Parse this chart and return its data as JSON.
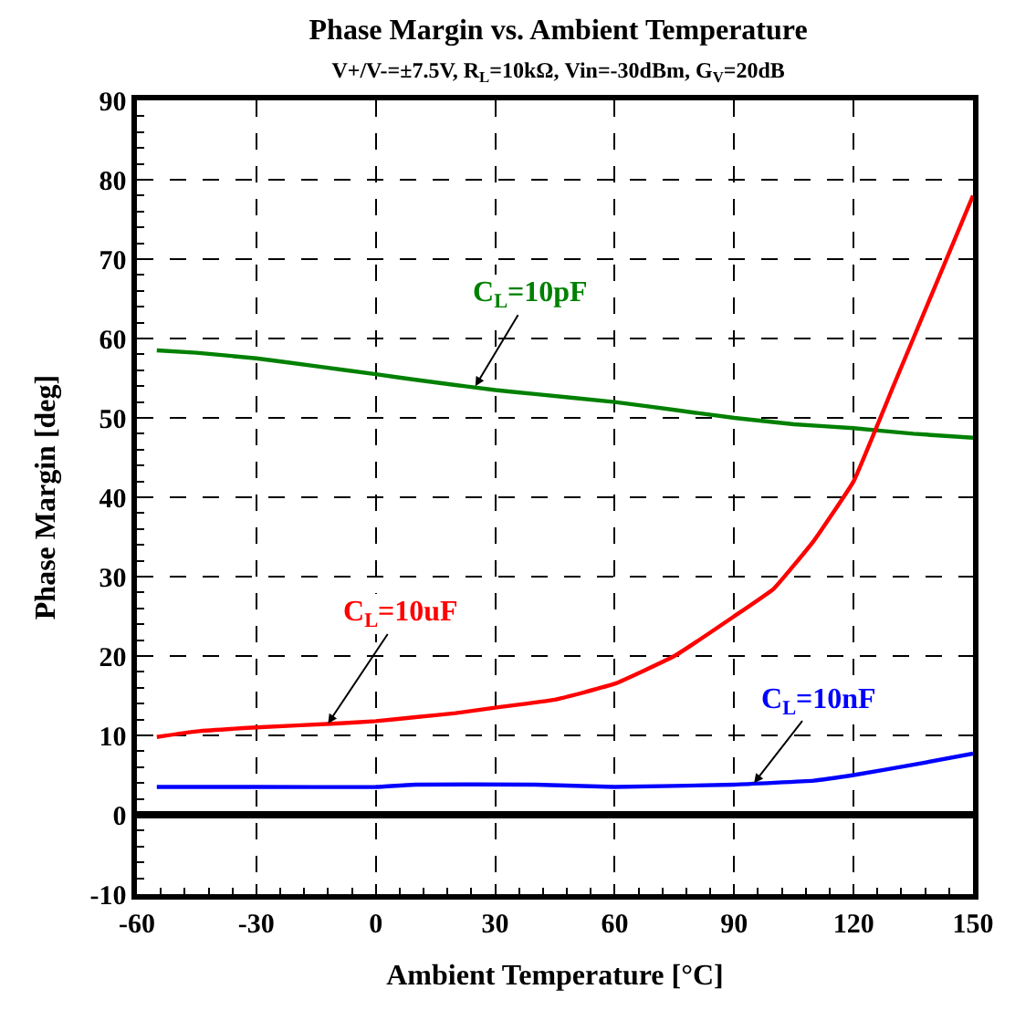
{
  "chart_data": {
    "type": "line",
    "title": "Phase Margin vs. Ambient Temperature",
    "subtitle": "V+/V-=±7.5V, R$_{L}$=10kΩ, Vin=-30dBm, G$_{V}$=20dB",
    "xlabel": "Ambient Temperature [°C]",
    "ylabel": "Phase Margin [deg]",
    "xlim": [
      -60,
      150
    ],
    "xticks": [
      -60,
      -30,
      0,
      30,
      60,
      90,
      120,
      150
    ],
    "ylim": [
      -10,
      90
    ],
    "yticks": [
      -10,
      0,
      10,
      20,
      30,
      40,
      50,
      60,
      70,
      80,
      90
    ],
    "grid": true,
    "line_style": "solid",
    "series": [
      {
        "color": "#008000",
        "x": [
          -55,
          -45,
          -30,
          -15,
          0,
          10,
          30,
          40,
          60,
          75,
          90,
          105,
          120,
          135,
          150
        ],
        "values": [
          58.5,
          58.2,
          57.5,
          56.5,
          55.5,
          54.8,
          53.5,
          53.0,
          52.0,
          51.0,
          50.0,
          49.2,
          48.7,
          48.0,
          47.5
        ]
      },
      {
        "color": "#ff0000",
        "x": [
          -55,
          -45,
          -30,
          -10,
          0,
          10,
          20,
          30,
          45,
          60,
          75,
          90,
          100,
          110,
          120,
          130,
          140,
          150
        ],
        "values": [
          9.8,
          10.5,
          11.0,
          11.5,
          11.8,
          12.3,
          12.8,
          13.5,
          14.5,
          16.5,
          20.0,
          25.0,
          28.5,
          34.5,
          42.0,
          54.0,
          66.0,
          78.0
        ]
      },
      {
        "color": "#0000ff",
        "x": [
          -55,
          -30,
          0,
          10,
          40,
          60,
          90,
          110,
          120,
          135,
          150
        ],
        "values": [
          3.5,
          3.5,
          3.5,
          3.8,
          3.8,
          3.5,
          3.8,
          4.3,
          5.0,
          6.3,
          7.7
        ]
      }
    ],
    "ref_lines": [
      {
        "axis": "y",
        "value": 0,
        "color": "#000000"
      }
    ],
    "annotations": [
      {
        "text": "C$_{L}$=10pF",
        "x": 25,
        "y": 54
      },
      {
        "text": "C$_{L}$=10uF",
        "x": -12,
        "y": 11.5
      },
      {
        "text": "C$_{L}$=10nF",
        "x": 95,
        "y": 4
      }
    ]
  }
}
